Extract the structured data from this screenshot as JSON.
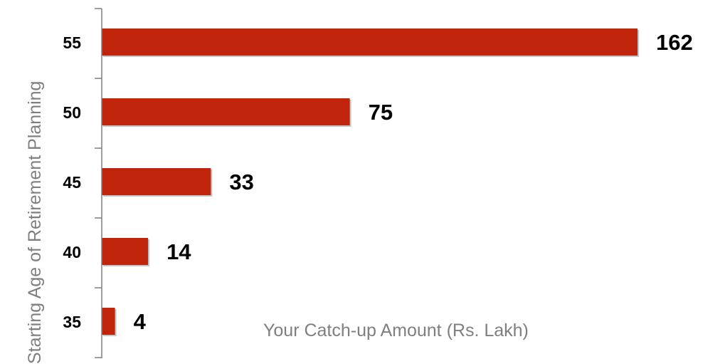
{
  "chart_data": {
    "type": "bar",
    "orientation": "horizontal",
    "title": "",
    "xlabel": "Your Catch-up Amount (Rs. Lakh)",
    "ylabel": "Starting Age of Retirement Planning",
    "categories": [
      "55",
      "50",
      "45",
      "40",
      "35"
    ],
    "values": [
      162,
      75,
      33,
      14,
      4
    ],
    "data_labels": [
      "162",
      "75",
      "33",
      "14",
      "4"
    ],
    "xlim": [
      0,
      162
    ],
    "grid": false,
    "legend": "none",
    "bar_color": "#c0240a",
    "axis_color": "#7f7f7f",
    "label_color": "#000000"
  }
}
